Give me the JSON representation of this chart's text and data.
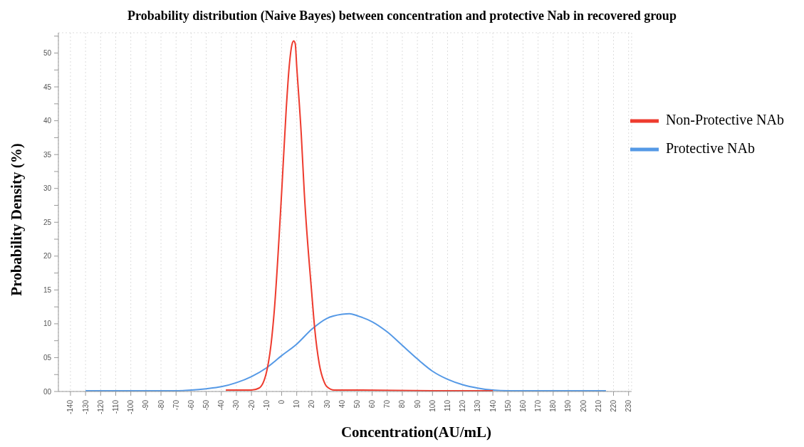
{
  "chart_data": {
    "type": "line",
    "title": "Probability distribution (Naive Bayes) between concentration and protective Nab in recovered group",
    "xlabel": "Concentration(AU/mL)",
    "ylabel": "Probability Density (%)",
    "xlim": [
      -148,
      232
    ],
    "xticks": [
      -140,
      -130,
      -120,
      -110,
      -100,
      -90,
      -80,
      -70,
      -60,
      -50,
      -40,
      -30,
      -20,
      -10,
      0,
      10,
      20,
      30,
      40,
      50,
      60,
      70,
      80,
      90,
      100,
      110,
      120,
      130,
      140,
      150,
      160,
      170,
      180,
      190,
      200,
      210,
      220,
      230
    ],
    "ylim": [
      0,
      53
    ],
    "yticks": [
      {
        "value": 0,
        "label": "00"
      },
      {
        "value": 2.5,
        "label": null
      },
      {
        "value": 5,
        "label": "05"
      },
      {
        "value": 7.5,
        "label": null
      },
      {
        "value": 10,
        "label": "10"
      },
      {
        "value": 12.5,
        "label": null
      },
      {
        "value": 15,
        "label": "15"
      },
      {
        "value": 17.5,
        "label": null
      },
      {
        "value": 20,
        "label": "20"
      },
      {
        "value": 22.5,
        "label": null
      },
      {
        "value": 25,
        "label": "25"
      },
      {
        "value": 27.5,
        "label": null
      },
      {
        "value": 30,
        "label": "30"
      },
      {
        "value": 32.5,
        "label": null
      },
      {
        "value": 35,
        "label": "35"
      },
      {
        "value": 37.5,
        "label": null
      },
      {
        "value": 40,
        "label": "40"
      },
      {
        "value": 42.5,
        "label": null
      },
      {
        "value": 45,
        "label": "45"
      },
      {
        "value": 47.5,
        "label": null
      },
      {
        "value": 50,
        "label": "50"
      },
      {
        "value": 52.5,
        "label": null
      }
    ],
    "grid": true,
    "legend": "top right",
    "marker": "none",
    "line_style": "solid",
    "series": [
      {
        "name": "Protective NAb",
        "color": "#5599e6",
        "x": [
          -130,
          -100,
          -80,
          -70,
          -60,
          -50,
          -40,
          -30,
          -20,
          -10,
          0,
          10,
          20,
          30,
          40,
          45,
          50,
          60,
          70,
          80,
          90,
          100,
          110,
          120,
          130,
          140,
          150,
          170,
          190,
          215
        ],
        "values": [
          0.1,
          0.1,
          0.1,
          0.1,
          0.2,
          0.4,
          0.7,
          1.3,
          2.2,
          3.5,
          5.3,
          7,
          9.2,
          10.8,
          11.4,
          11.5,
          11.2,
          10.3,
          8.8,
          6.8,
          4.8,
          3,
          1.8,
          1,
          0.5,
          0.2,
          0.1,
          0.1,
          0.1,
          0.1
        ]
      },
      {
        "name": "Non-Protective NAb",
        "color": "#ee3b2e",
        "x": [
          -37,
          -20,
          -15,
          -10,
          -7,
          -5,
          0,
          3,
          5,
          7,
          8,
          9,
          10,
          13,
          15,
          20,
          22,
          25,
          28,
          30,
          35,
          40,
          52,
          100,
          140
        ],
        "values": [
          0.2,
          0.2,
          0.5,
          2.9,
          7,
          11.6,
          29.4,
          41.6,
          48,
          51.4,
          51.8,
          51.4,
          48,
          38,
          29.4,
          14.4,
          9.1,
          4,
          1.5,
          0.7,
          0.2,
          0.2,
          0.2,
          0.1,
          0.1
        ]
      }
    ]
  }
}
